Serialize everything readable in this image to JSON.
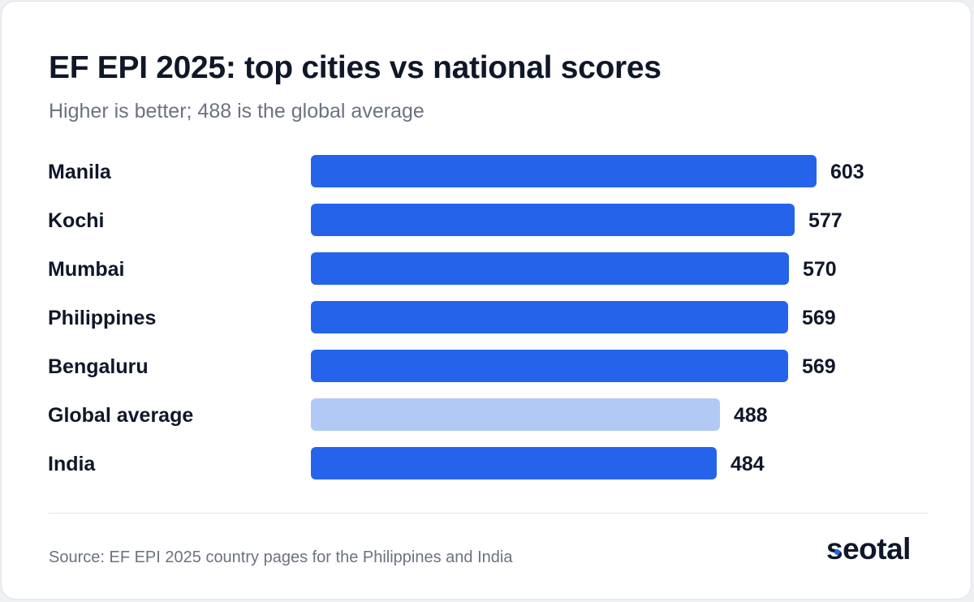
{
  "chart_data": {
    "type": "bar",
    "orientation": "horizontal",
    "title": "EF EPI 2025: top cities vs national scores",
    "subtitle": "Higher is better; 488 is the global average",
    "categories": [
      "Manila",
      "Kochi",
      "Mumbai",
      "Philippines",
      "Bengaluru",
      "Global average",
      "India"
    ],
    "values": [
      603,
      577,
      570,
      569,
      569,
      488,
      484
    ],
    "value_labels": [
      "603",
      "577",
      "570",
      "569",
      "569",
      "488",
      "484"
    ],
    "highlighted": [
      false,
      false,
      false,
      false,
      false,
      true,
      false
    ],
    "xlim": [
      0,
      603
    ],
    "grid": false,
    "legend": "none"
  },
  "colors": {
    "bar": "#2563eb",
    "bar_highlight": "#b3c9f5",
    "text": "#0f1729",
    "muted": "#6b7280",
    "logo_accent": "#2563eb"
  },
  "footer": {
    "source": "Source: EF EPI 2025 country pages for the Philippines and India",
    "logo": "seotal"
  }
}
